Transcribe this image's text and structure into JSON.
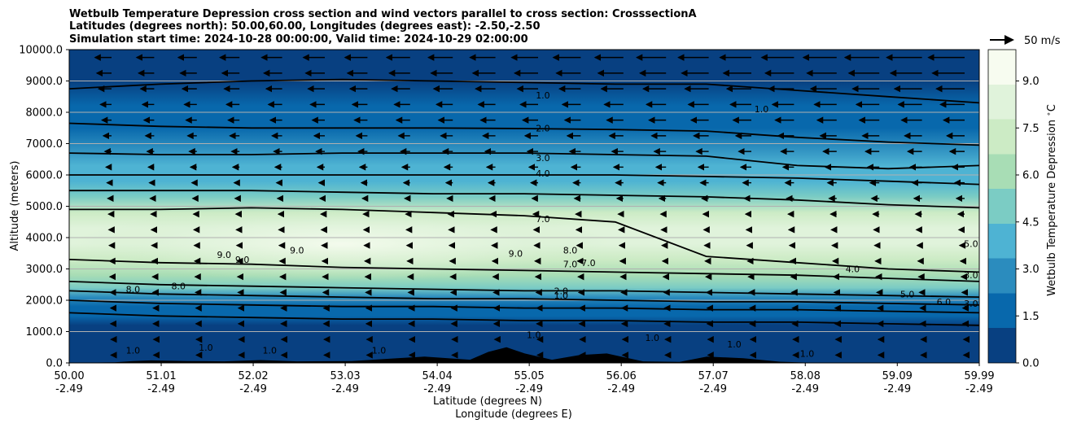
{
  "chart_data": {
    "type": "heatmap",
    "title_lines": [
      "Wetbulb Temperature Depression cross section and wind vectors parallel to cross section: CrosssectionA",
      "Latitudes (degrees north): 50.00,60.00, Longitudes (degrees east): -2.50,-2.50",
      "Simulation start time: 2024-10-28 00:00:00, Valid time: 2024-10-29 02:00:00"
    ],
    "ylabel": "Altitude (meters)",
    "xlabel_lines": [
      "Latitude (degrees N)",
      "Longitude (degrees E)"
    ],
    "x_ticks": [
      {
        "lat": "50.00",
        "lon": "-2.49"
      },
      {
        "lat": "51.01",
        "lon": "-2.49"
      },
      {
        "lat": "52.02",
        "lon": "-2.49"
      },
      {
        "lat": "53.03",
        "lon": "-2.49"
      },
      {
        "lat": "54.04",
        "lon": "-2.49"
      },
      {
        "lat": "55.05",
        "lon": "-2.49"
      },
      {
        "lat": "56.06",
        "lon": "-2.49"
      },
      {
        "lat": "57.07",
        "lon": "-2.49"
      },
      {
        "lat": "58.08",
        "lon": "-2.49"
      },
      {
        "lat": "59.09",
        "lon": "-2.49"
      },
      {
        "lat": "59.99",
        "lon": "-2.49"
      }
    ],
    "xlim": [
      50.0,
      59.99
    ],
    "y_ticks": [
      "0.0",
      "1000.0",
      "2000.0",
      "3000.0",
      "4000.0",
      "5000.0",
      "6000.0",
      "7000.0",
      "8000.0",
      "9000.0",
      "10000.0"
    ],
    "ylim": [
      0,
      10000
    ],
    "grid": "horizontal",
    "colorbar": {
      "label": "Wetbulb Temperature Depression $^\\circ$C",
      "ticks": [
        "0.0",
        "1.5",
        "3.0",
        "4.5",
        "6.0",
        "7.5",
        "9.0"
      ],
      "range": [
        0,
        10
      ],
      "colormap": [
        "#084081",
        "#0868ac",
        "#2b8cbe",
        "#4eb3d3",
        "#7bccc4",
        "#a8ddb5",
        "#ccebc5",
        "#e0f3db",
        "#f7fcf0"
      ]
    },
    "wind_reference": {
      "label": "50 m/s",
      "speed": 50
    },
    "depression_profile": [
      {
        "alt": 0,
        "value": 0.9
      },
      {
        "alt": 300,
        "value": 1.0
      },
      {
        "alt": 800,
        "value": 0.6
      },
      {
        "alt": 1200,
        "value": 0.7
      },
      {
        "alt": 1500,
        "value": 1.2
      },
      {
        "alt": 1800,
        "value": 2.0
      },
      {
        "alt": 2100,
        "value": 3.3
      },
      {
        "alt": 2400,
        "value": 4.5
      },
      {
        "alt": 2800,
        "value": 5.6
      },
      {
        "alt": 3300,
        "value": 7.0
      },
      {
        "alt": 3800,
        "value": 8.2
      },
      {
        "alt": 4300,
        "value": 8.0
      },
      {
        "alt": 4800,
        "value": 6.8
      },
      {
        "alt": 5300,
        "value": 5.5
      },
      {
        "alt": 5800,
        "value": 4.4
      },
      {
        "alt": 6300,
        "value": 3.5
      },
      {
        "alt": 6900,
        "value": 2.6
      },
      {
        "alt": 7500,
        "value": 1.9
      },
      {
        "alt": 8200,
        "value": 1.3
      },
      {
        "alt": 9000,
        "value": 0.9
      },
      {
        "alt": 10000,
        "value": 0.4
      }
    ],
    "contour_lines": [
      {
        "level": "1.0",
        "alt": [
          8750,
          8900,
          9000,
          9050,
          9000,
          8950,
          8900,
          8900,
          8700,
          8500,
          8300
        ]
      },
      {
        "level": "2.0",
        "alt": [
          7650,
          7550,
          7500,
          7500,
          7500,
          7480,
          7450,
          7400,
          7200,
          7050,
          6950
        ]
      },
      {
        "level": "3.0",
        "alt": [
          6700,
          6650,
          6650,
          6700,
          6700,
          6700,
          6650,
          6600,
          6300,
          6200,
          6300
        ]
      },
      {
        "level": "4.0",
        "alt": [
          6000,
          6000,
          6000,
          6000,
          6000,
          6000,
          6000,
          5950,
          5900,
          5800,
          5700
        ]
      },
      {
        "level": "5.0",
        "alt": [
          5500,
          5500,
          5500,
          5450,
          5400,
          5400,
          5350,
          5300,
          5200,
          5050,
          4950
        ]
      },
      {
        "level": "7.0",
        "alt": [
          4900,
          4900,
          4950,
          4900,
          4800,
          4700,
          4500,
          3400,
          3200,
          3000,
          2900
        ]
      },
      {
        "level": "8.0",
        "alt": [
          3300,
          3200,
          3150,
          3050,
          3000,
          2950,
          2900,
          2850,
          2800,
          2700,
          2600
        ]
      },
      {
        "level": "6.0",
        "alt": [
          2600,
          2500,
          2450,
          2400,
          2350,
          2300,
          2300,
          2250,
          2200,
          2150,
          2100
        ]
      },
      {
        "level": "4.0",
        "alt": [
          2300,
          2200,
          2150,
          2100,
          2050,
          2050,
          2000,
          1950,
          1950,
          1900,
          1850
        ]
      },
      {
        "level": "2.0",
        "alt": [
          2000,
          1900,
          1850,
          1800,
          1800,
          1750,
          1750,
          1700,
          1700,
          1650,
          1600
        ]
      },
      {
        "level": "1.0",
        "alt": [
          1600,
          1500,
          1450,
          1400,
          1400,
          1350,
          1350,
          1300,
          1300,
          1250,
          1200
        ]
      }
    ],
    "contour_labels": [
      {
        "text": "1.0",
        "lat": 55.2,
        "alt": 8550
      },
      {
        "text": "1.0",
        "lat": 57.6,
        "alt": 8100
      },
      {
        "text": "2.0",
        "lat": 55.2,
        "alt": 7500
      },
      {
        "text": "3.0",
        "lat": 55.2,
        "alt": 6550
      },
      {
        "text": "4.0",
        "lat": 55.2,
        "alt": 6050
      },
      {
        "text": "7.0",
        "lat": 55.2,
        "alt": 4600
      },
      {
        "text": "9.0",
        "lat": 51.7,
        "alt": 3450
      },
      {
        "text": "9.0",
        "lat": 51.9,
        "alt": 3300
      },
      {
        "text": "9.0",
        "lat": 52.5,
        "alt": 3600
      },
      {
        "text": "9.0",
        "lat": 54.9,
        "alt": 3500
      },
      {
        "text": "8.0",
        "lat": 55.5,
        "alt": 3600
      },
      {
        "text": "7.0",
        "lat": 55.5,
        "alt": 3150
      },
      {
        "text": "7.0",
        "lat": 55.7,
        "alt": 3200
      },
      {
        "text": "8.0",
        "lat": 50.7,
        "alt": 2350
      },
      {
        "text": "8.0",
        "lat": 51.2,
        "alt": 2450
      },
      {
        "text": "2.0",
        "lat": 55.4,
        "alt": 2300
      },
      {
        "text": "1.0",
        "lat": 55.4,
        "alt": 2150
      },
      {
        "text": "4.0",
        "lat": 58.6,
        "alt": 3000
      },
      {
        "text": "5.0",
        "lat": 59.9,
        "alt": 3800
      },
      {
        "text": "3.0",
        "lat": 59.9,
        "alt": 2800
      },
      {
        "text": "5.0",
        "lat": 59.2,
        "alt": 2200
      },
      {
        "text": "6.0",
        "lat": 59.6,
        "alt": 1950
      },
      {
        "text": "3.0",
        "lat": 59.9,
        "alt": 1900
      },
      {
        "text": "1.0",
        "lat": 55.1,
        "alt": 900
      },
      {
        "text": "1.0",
        "lat": 56.4,
        "alt": 800
      },
      {
        "text": "1.0",
        "lat": 50.7,
        "alt": 400
      },
      {
        "text": "1.0",
        "lat": 51.5,
        "alt": 500
      },
      {
        "text": "1.0",
        "lat": 52.2,
        "alt": 400
      },
      {
        "text": "1.0",
        "lat": 53.4,
        "alt": 400
      },
      {
        "text": "1.0",
        "lat": 57.3,
        "alt": 600
      },
      {
        "text": "1.0",
        "lat": 58.1,
        "alt": 300
      }
    ],
    "terrain": [
      {
        "lat": 50.0,
        "alt": 0
      },
      {
        "lat": 50.5,
        "alt": 20
      },
      {
        "lat": 50.7,
        "alt": 60
      },
      {
        "lat": 50.9,
        "alt": 80
      },
      {
        "lat": 51.3,
        "alt": 60
      },
      {
        "lat": 51.7,
        "alt": 50
      },
      {
        "lat": 52.1,
        "alt": 90
      },
      {
        "lat": 52.5,
        "alt": 50
      },
      {
        "lat": 53.1,
        "alt": 60
      },
      {
        "lat": 53.6,
        "alt": 150
      },
      {
        "lat": 53.9,
        "alt": 200
      },
      {
        "lat": 54.4,
        "alt": 100
      },
      {
        "lat": 54.6,
        "alt": 350
      },
      {
        "lat": 54.8,
        "alt": 500
      },
      {
        "lat": 55.0,
        "alt": 300
      },
      {
        "lat": 55.3,
        "alt": 100
      },
      {
        "lat": 55.6,
        "alt": 250
      },
      {
        "lat": 55.9,
        "alt": 300
      },
      {
        "lat": 56.3,
        "alt": 50
      },
      {
        "lat": 56.7,
        "alt": 30
      },
      {
        "lat": 57.0,
        "alt": 200
      },
      {
        "lat": 57.4,
        "alt": 150
      },
      {
        "lat": 57.8,
        "alt": 40
      },
      {
        "lat": 58.2,
        "alt": 0
      },
      {
        "lat": 59.99,
        "alt": 0
      }
    ],
    "wind_levels": [
      {
        "alt": 9750,
        "u": -4.5
      },
      {
        "alt": 9250,
        "u": -4.0
      },
      {
        "alt": 8750,
        "u": -3.5
      },
      {
        "alt": 8250,
        "u": -3.0
      },
      {
        "alt": 7750,
        "u": -2.6
      },
      {
        "alt": 7250,
        "u": -2.2
      },
      {
        "alt": 6750,
        "u": -1.8
      },
      {
        "alt": 6250,
        "u": -1.5
      },
      {
        "alt": 5750,
        "u": -1.2
      },
      {
        "alt": 5250,
        "u": -1.0
      },
      {
        "alt": 4750,
        "u": -0.8
      },
      {
        "alt": 4250,
        "u": -0.7
      },
      {
        "alt": 3750,
        "u": -0.6
      },
      {
        "alt": 3250,
        "u": -0.5
      },
      {
        "alt": 2750,
        "u": -0.4
      },
      {
        "alt": 2250,
        "u": -0.3
      },
      {
        "alt": 1750,
        "u": -0.2
      },
      {
        "alt": 1250,
        "u": -0.2
      },
      {
        "alt": 750,
        "u": -0.1
      },
      {
        "alt": 250,
        "u": -0.1
      }
    ]
  }
}
